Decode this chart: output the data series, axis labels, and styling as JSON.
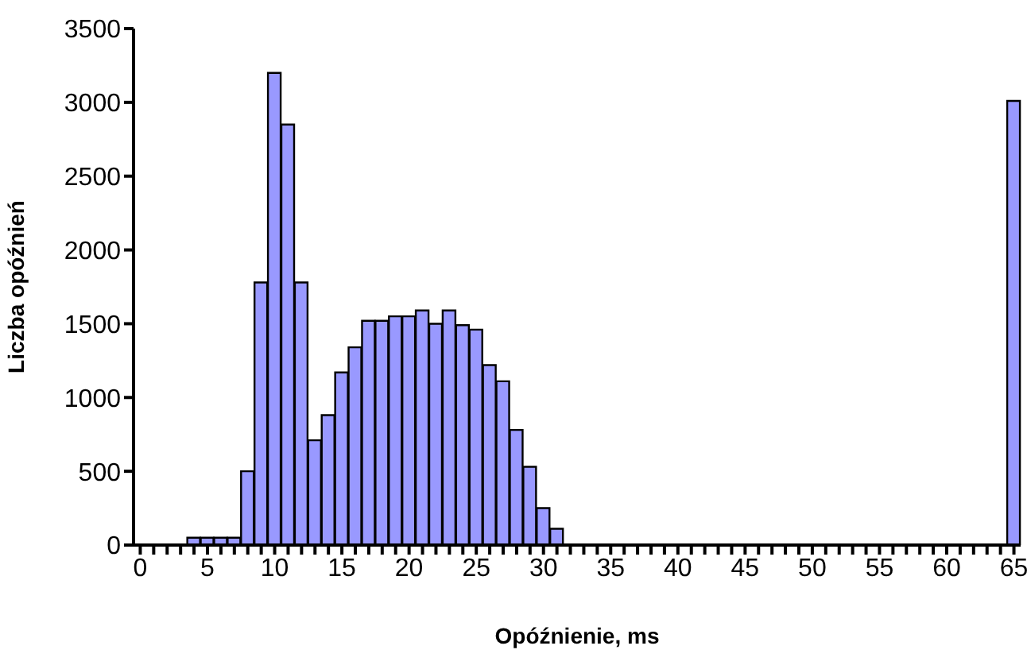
{
  "chart_data": {
    "type": "bar",
    "xlabel": "Opóźnienie, ms",
    "ylabel": "Liczba opóźnień",
    "categories": [
      "0",
      null,
      null,
      null,
      null,
      "5",
      null,
      null,
      null,
      null,
      "10",
      null,
      null,
      null,
      null,
      "15",
      null,
      null,
      null,
      null,
      "20",
      null,
      null,
      null,
      null,
      "25",
      null,
      null,
      null,
      null,
      "30",
      null,
      null,
      null,
      null,
      "35",
      null,
      null,
      null,
      null,
      "40",
      null,
      null,
      null,
      null,
      "45",
      null,
      null,
      null,
      null,
      "50",
      null,
      null,
      null,
      null,
      "55",
      null,
      null,
      null,
      null,
      "60",
      null,
      null,
      null,
      null,
      "65"
    ],
    "values": [
      0,
      0,
      0,
      0,
      50,
      50,
      50,
      50,
      500,
      1780,
      3200,
      2850,
      1780,
      710,
      880,
      1170,
      1340,
      1520,
      1520,
      1550,
      1550,
      1590,
      1500,
      1590,
      1490,
      1460,
      1220,
      1110,
      780,
      530,
      250,
      110,
      0,
      0,
      0,
      0,
      0,
      0,
      0,
      0,
      0,
      0,
      0,
      0,
      0,
      0,
      0,
      0,
      0,
      0,
      0,
      0,
      0,
      0,
      0,
      0,
      0,
      0,
      0,
      0,
      0,
      0,
      0,
      0,
      0,
      3010
    ],
    "color": "#9999ff",
    "ylim": [
      0,
      3500
    ],
    "yticks": [
      0,
      500,
      1000,
      1500,
      2000,
      2500,
      3000,
      3500
    ],
    "grid": false,
    "legend": false
  }
}
